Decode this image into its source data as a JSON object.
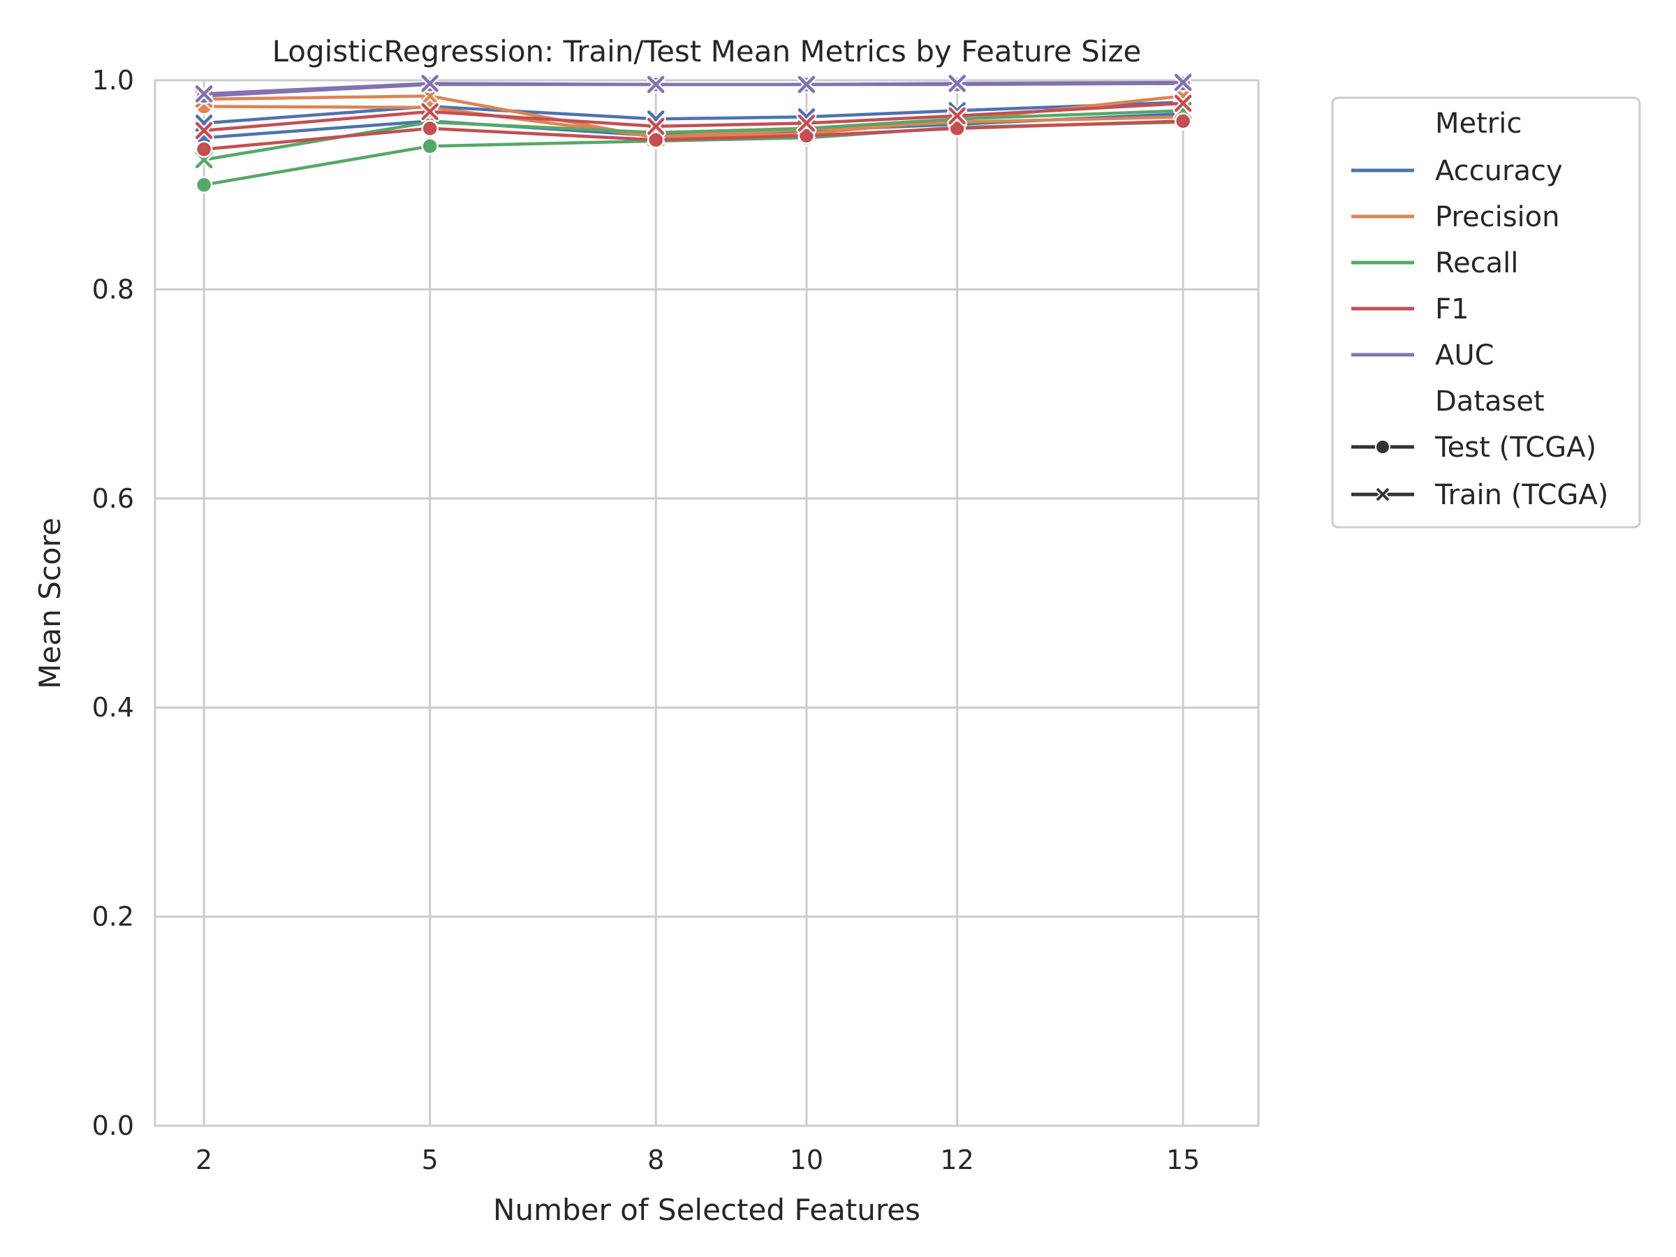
{
  "chart_data": {
    "type": "line",
    "title": "LogisticRegression: Train/Test Mean Metrics by Feature Size",
    "xlabel": "Number of Selected Features",
    "ylabel": "Mean Score",
    "x": [
      2,
      5,
      8,
      10,
      12,
      15
    ],
    "x_ticks": [
      "2",
      "5",
      "8",
      "10",
      "12",
      "15"
    ],
    "xlim": [
      1.35,
      16.0
    ],
    "ylim": [
      0.0,
      1.0
    ],
    "y_ticks": [
      "0.0",
      "0.2",
      "0.4",
      "0.6",
      "0.8",
      "1.0"
    ],
    "grid": true,
    "legend_placement": "outside upper right",
    "legend": {
      "metric_title": "Metric",
      "dataset_title": "Dataset",
      "metrics": [
        "Accuracy",
        "Precision",
        "Recall",
        "F1",
        "AUC"
      ],
      "datasets": [
        "Test (TCGA)",
        "Train (TCGA)"
      ]
    },
    "colors": {
      "Accuracy": "#4c72b0",
      "Precision": "#dd8452",
      "Recall": "#55a868",
      "F1": "#c44e52",
      "AUC": "#8172b3",
      "legend_marker": "#333333"
    },
    "series": [
      {
        "metric": "Accuracy",
        "dataset": "Test (TCGA)",
        "marker": "circle",
        "values": [
          0.945,
          0.961,
          0.947,
          0.952,
          0.958,
          0.968
        ]
      },
      {
        "metric": "Accuracy",
        "dataset": "Train (TCGA)",
        "marker": "x",
        "values": [
          0.959,
          0.975,
          0.963,
          0.965,
          0.971,
          0.979
        ]
      },
      {
        "metric": "Precision",
        "dataset": "Test (TCGA)",
        "marker": "circle",
        "values": [
          0.975,
          0.974,
          0.946,
          0.953,
          0.96,
          0.965
        ]
      },
      {
        "metric": "Precision",
        "dataset": "Train (TCGA)",
        "marker": "x",
        "values": [
          0.982,
          0.985,
          0.945,
          0.949,
          0.962,
          0.985
        ]
      },
      {
        "metric": "Recall",
        "dataset": "Test (TCGA)",
        "marker": "circle",
        "values": [
          0.9,
          0.937,
          0.942,
          0.945,
          0.955,
          0.96
        ]
      },
      {
        "metric": "Recall",
        "dataset": "Train (TCGA)",
        "marker": "x",
        "values": [
          0.924,
          0.96,
          0.95,
          0.954,
          0.963,
          0.971
        ]
      },
      {
        "metric": "F1",
        "dataset": "Test (TCGA)",
        "marker": "circle",
        "values": [
          0.934,
          0.954,
          0.943,
          0.947,
          0.954,
          0.961
        ]
      },
      {
        "metric": "F1",
        "dataset": "Train (TCGA)",
        "marker": "x",
        "values": [
          0.952,
          0.97,
          0.956,
          0.959,
          0.966,
          0.978
        ]
      },
      {
        "metric": "AUC",
        "dataset": "Test (TCGA)",
        "marker": "circle",
        "values": [
          0.985,
          0.996,
          0.996,
          0.996,
          0.996,
          0.997
        ]
      },
      {
        "metric": "AUC",
        "dataset": "Train (TCGA)",
        "marker": "x",
        "values": [
          0.987,
          0.997,
          0.996,
          0.996,
          0.997,
          0.998
        ]
      }
    ]
  }
}
